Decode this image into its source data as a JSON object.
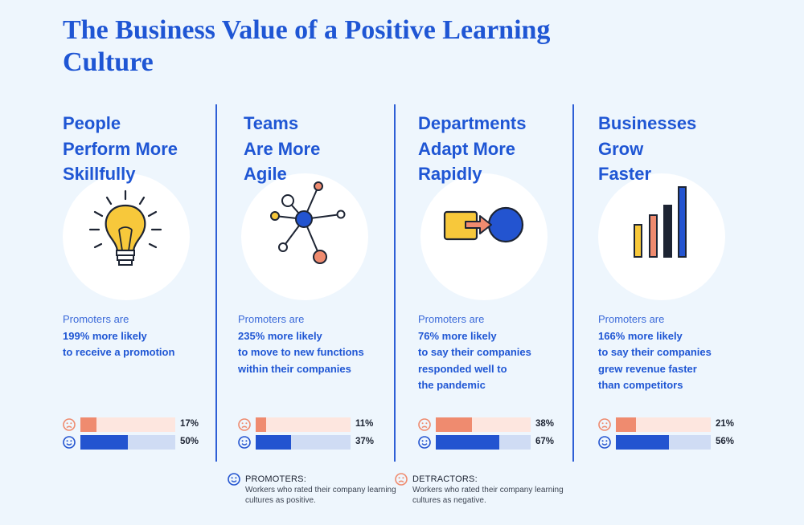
{
  "title": "The Business Value of a Positive Learning Culture",
  "columns": [
    {
      "heading": "People\nPerform More\nSkillfully",
      "icon": "lightbulb-icon",
      "stat_intro": "Promoters are",
      "stat_bold": "199% more likely\nto receive a promotion",
      "detractor_pct": 17,
      "detractor_label": "17%",
      "promoter_pct": 50,
      "promoter_label": "50%"
    },
    {
      "heading": "Teams\nAre More\nAgile",
      "icon": "network-nodes-icon",
      "stat_intro": "Promoters are",
      "stat_bold": "235% more likely\nto move to new functions\nwithin their companies",
      "detractor_pct": 11,
      "detractor_label": "11%",
      "promoter_pct": 37,
      "promoter_label": "37%"
    },
    {
      "heading": "Departments\nAdapt More\nRapidly",
      "icon": "square-to-circle-icon",
      "stat_intro": "Promoters are",
      "stat_bold": "76% more likely\nto say their companies\nresponded well to\nthe pandemic",
      "detractor_pct": 38,
      "detractor_label": "38%",
      "promoter_pct": 67,
      "promoter_label": "67%"
    },
    {
      "heading": "Businesses\nGrow\nFaster",
      "icon": "growth-bars-icon",
      "stat_intro": "Promoters are",
      "stat_bold": "166% more likely\nto say their companies\ngrew revenue faster\nthan competitors",
      "detractor_pct": 21,
      "detractor_label": "21%",
      "promoter_pct": 56,
      "promoter_label": "56%"
    }
  ],
  "legend": {
    "promoters_title": "PROMOTERS:",
    "promoters_desc": "Workers who rated their company learning cultures as positive.",
    "detractors_title": "DETRACTORS:",
    "detractors_desc": "Workers who rated their company learning cultures as negative."
  },
  "colors": {
    "title_blue": "#1f56d4",
    "promoter_blue": "#2354d0",
    "detractor_coral": "#ef8b6f",
    "background": "#eef6fd"
  }
}
